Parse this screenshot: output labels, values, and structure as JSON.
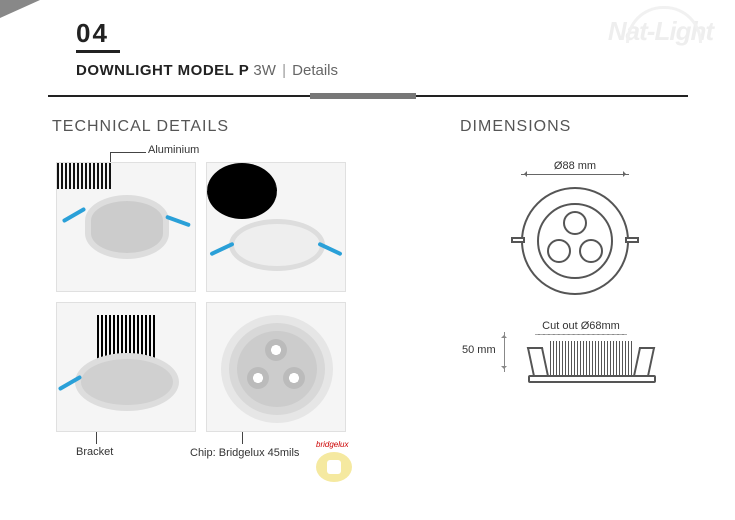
{
  "page_number": "04",
  "title": {
    "model": "DOWNLIGHT MODEL P",
    "wattage": "3W",
    "sep": "|",
    "sub": "Details"
  },
  "watermark": "Nat-Light",
  "sections": {
    "technical": "TECHNICAL DETAILS",
    "dimensions": "DIMENSIONS"
  },
  "callouts": {
    "aluminium": "Aluminium",
    "bracket": "Bracket",
    "chip": "Chip: Bridgelux 45mils"
  },
  "bridgelux_logo": "bridgelux",
  "dimensions": {
    "diameter": "Ø88 mm",
    "cutout": "Cut out  Ø68mm",
    "height": "50 mm"
  },
  "colors": {
    "text": "#222222",
    "muted": "#666666",
    "line": "#444444",
    "accent_bar": "#777777",
    "clip_blue": "#2aa0d8",
    "watermark": "#eeeeee"
  }
}
